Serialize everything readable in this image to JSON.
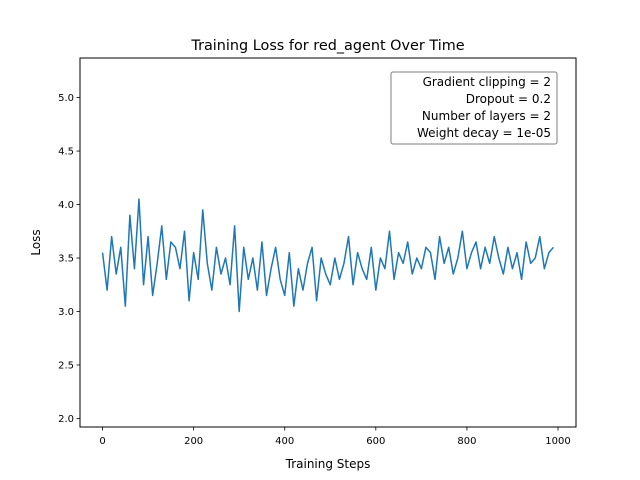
{
  "chart_data": {
    "type": "line",
    "title": "Training Loss for red_agent Over Time",
    "xlabel": "Training Steps",
    "ylabel": "Loss",
    "xlim": [
      -49.5,
      1039.5
    ],
    "ylim": [
      1.92,
      5.37
    ],
    "x_ticks": [
      0,
      200,
      400,
      600,
      800,
      1000
    ],
    "x_tick_labels": [
      "0",
      "200",
      "400",
      "600",
      "800",
      "1000"
    ],
    "y_ticks": [
      2.0,
      2.5,
      3.0,
      3.5,
      4.0,
      4.5,
      5.0
    ],
    "y_tick_labels": [
      "2.0",
      "2.5",
      "3.0",
      "3.5",
      "4.0",
      "4.5",
      "5.0"
    ],
    "grid": false,
    "annotation": {
      "lines": [
        "Gradient clipping = 2",
        "Dropout = 0.2",
        "Number of layers = 2",
        "Weight decay = 1e-05"
      ],
      "placement": "top-right"
    },
    "series": [
      {
        "color": "#1f77b4",
        "x_start": 0,
        "x_step": 10,
        "values": [
          3.55,
          3.2,
          3.7,
          3.35,
          3.6,
          3.05,
          3.9,
          3.4,
          4.05,
          3.25,
          3.7,
          3.15,
          3.45,
          3.8,
          3.3,
          3.65,
          3.6,
          3.4,
          3.75,
          3.1,
          3.55,
          3.3,
          3.95,
          3.45,
          3.2,
          3.6,
          3.35,
          3.5,
          3.25,
          3.8,
          3.0,
          3.6,
          3.3,
          3.5,
          3.2,
          3.65,
          3.15,
          3.4,
          3.6,
          3.3,
          3.15,
          3.55,
          3.05,
          3.4,
          3.2,
          3.45,
          3.6,
          3.1,
          3.5,
          3.35,
          3.25,
          3.5,
          3.3,
          3.45,
          3.7,
          3.25,
          3.55,
          3.4,
          3.3,
          3.6,
          3.2,
          3.5,
          3.4,
          3.75,
          3.3,
          3.55,
          3.45,
          3.65,
          3.35,
          3.5,
          3.4,
          3.6,
          3.55,
          3.3,
          3.7,
          3.45,
          3.6,
          3.35,
          3.5,
          3.75,
          3.4,
          3.55,
          3.65,
          3.4,
          3.6,
          3.45,
          3.7,
          3.5,
          3.35,
          3.6,
          3.4,
          3.55,
          3.3,
          3.65,
          3.45,
          3.5,
          3.7,
          3.4,
          3.55,
          3.6
        ]
      }
    ]
  }
}
